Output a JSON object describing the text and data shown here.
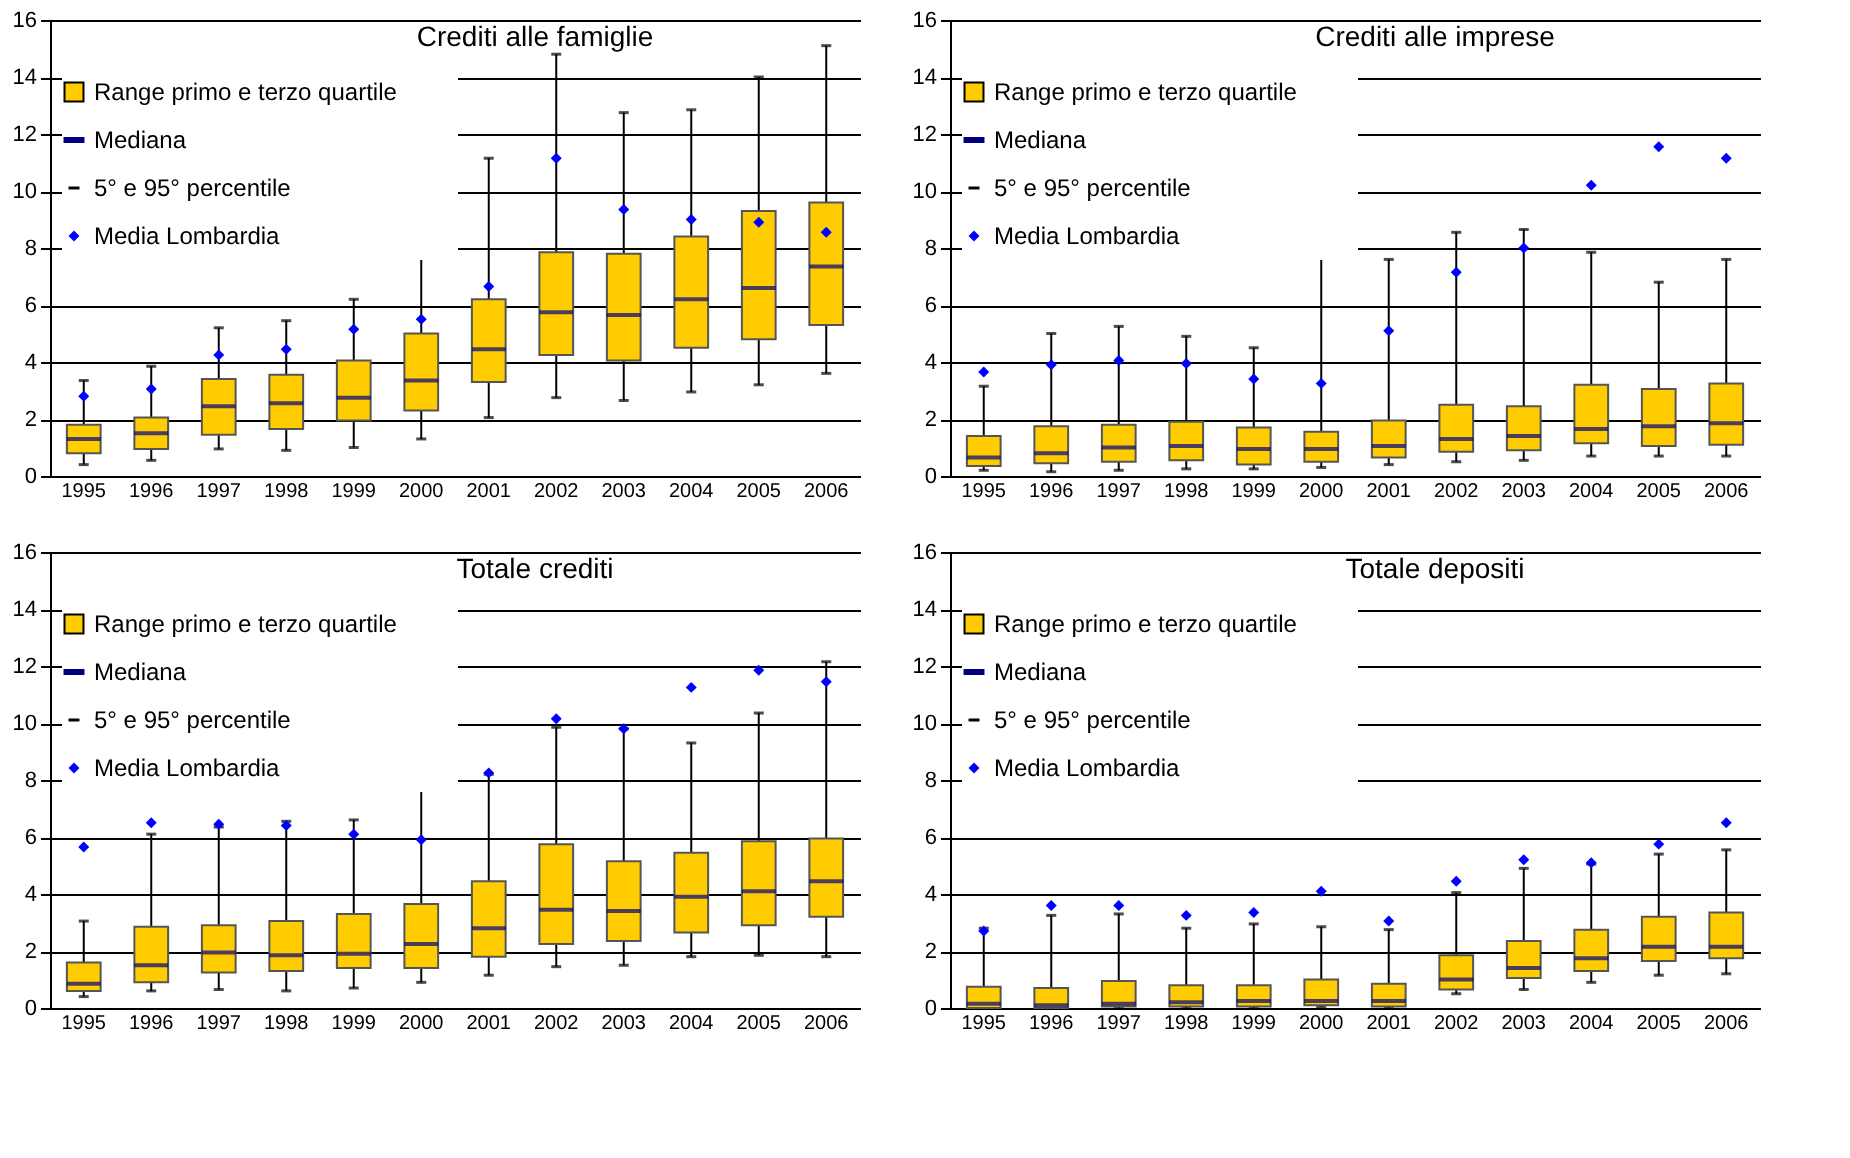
{
  "chart_data": [
    {
      "type": "box",
      "title": "Crediti alle famiglie",
      "categories": [
        "1995",
        "1996",
        "1997",
        "1998",
        "1999",
        "2000",
        "2001",
        "2002",
        "2003",
        "2004",
        "2005",
        "2006"
      ],
      "ylim": [
        0,
        16
      ],
      "yticks": [
        0,
        2,
        4,
        6,
        8,
        10,
        12,
        14,
        16
      ],
      "grid": "y",
      "legend": "top left",
      "marker": "diamond",
      "annotations": [
        "Mediana",
        "5° e 95° percentile"
      ],
      "series": [
        {
          "name": "Range primo e terzo quartile",
          "type": "box",
          "color": "#ffcc00",
          "boxes": [
            {
              "low": 0.4,
              "q1": 0.8,
              "median": 1.3,
              "q3": 1.8,
              "high": 3.35
            },
            {
              "low": 0.55,
              "q1": 0.95,
              "median": 1.5,
              "q3": 2.05,
              "high": 3.85
            },
            {
              "low": 0.95,
              "q1": 1.45,
              "median": 2.45,
              "q3": 3.4,
              "high": 5.2
            },
            {
              "low": 0.9,
              "q1": 1.65,
              "median": 2.55,
              "q3": 3.55,
              "high": 5.45
            },
            {
              "low": 1.0,
              "q1": 1.95,
              "median": 2.75,
              "q3": 4.05,
              "high": 6.2
            },
            {
              "low": 1.3,
              "q1": 2.3,
              "median": 3.35,
              "q3": 5.0,
              "high": 8.4
            },
            {
              "low": 2.05,
              "q1": 3.3,
              "median": 4.45,
              "q3": 6.2,
              "high": 11.15
            },
            {
              "low": 2.75,
              "q1": 4.25,
              "median": 5.75,
              "q3": 7.85,
              "high": 14.8
            },
            {
              "low": 2.65,
              "q1": 4.05,
              "median": 5.65,
              "q3": 7.8,
              "high": 12.75
            },
            {
              "low": 2.95,
              "q1": 4.5,
              "median": 6.2,
              "q3": 8.4,
              "high": 12.85
            },
            {
              "low": 3.2,
              "q1": 4.8,
              "median": 6.6,
              "q3": 9.3,
              "high": 14.0
            },
            {
              "low": 3.6,
              "q1": 5.3,
              "median": 7.35,
              "q3": 9.6,
              "high": 15.1
            }
          ]
        },
        {
          "name": "Media Lombardia",
          "type": "scatter",
          "color": "#0000ff",
          "values": [
            2.8,
            3.05,
            4.25,
            4.45,
            5.15,
            5.5,
            6.65,
            11.15,
            9.35,
            9.0,
            8.9,
            8.55
          ]
        }
      ]
    },
    {
      "type": "box",
      "title": "Crediti alle imprese",
      "categories": [
        "1995",
        "1996",
        "1997",
        "1998",
        "1999",
        "2000",
        "2001",
        "2002",
        "2003",
        "2004",
        "2005",
        "2006"
      ],
      "ylim": [
        0,
        16
      ],
      "yticks": [
        0,
        2,
        4,
        6,
        8,
        10,
        12,
        14,
        16
      ],
      "grid": "y",
      "legend": "top left",
      "marker": "diamond",
      "annotations": [
        "Mediana",
        "5° e 95° percentile"
      ],
      "series": [
        {
          "name": "Range primo e terzo quartile",
          "type": "box",
          "color": "#ffcc00",
          "boxes": [
            {
              "low": 0.2,
              "q1": 0.35,
              "median": 0.65,
              "q3": 1.4,
              "high": 3.15
            },
            {
              "low": 0.15,
              "q1": 0.45,
              "median": 0.8,
              "q3": 1.75,
              "high": 5.0
            },
            {
              "low": 0.2,
              "q1": 0.5,
              "median": 1.0,
              "q3": 1.8,
              "high": 5.25
            },
            {
              "low": 0.25,
              "q1": 0.55,
              "median": 1.05,
              "q3": 1.9,
              "high": 4.9
            },
            {
              "low": 0.25,
              "q1": 0.4,
              "median": 0.95,
              "q3": 1.7,
              "high": 4.5
            },
            {
              "low": 0.3,
              "q1": 0.5,
              "median": 0.95,
              "q3": 1.55,
              "high": 8.4
            },
            {
              "low": 0.4,
              "q1": 0.65,
              "median": 1.05,
              "q3": 1.95,
              "high": 7.6
            },
            {
              "low": 0.5,
              "q1": 0.85,
              "median": 1.3,
              "q3": 2.5,
              "high": 8.55
            },
            {
              "low": 0.55,
              "q1": 0.9,
              "median": 1.4,
              "q3": 2.45,
              "high": 8.65
            },
            {
              "low": 0.7,
              "q1": 1.15,
              "median": 1.65,
              "q3": 3.2,
              "high": 7.85
            },
            {
              "low": 0.7,
              "q1": 1.05,
              "median": 1.75,
              "q3": 3.05,
              "high": 6.8
            },
            {
              "low": 0.7,
              "q1": 1.1,
              "median": 1.85,
              "q3": 3.25,
              "high": 7.6
            }
          ]
        },
        {
          "name": "Media Lombardia",
          "type": "scatter",
          "color": "#0000ff",
          "values": [
            3.65,
            3.9,
            4.05,
            3.95,
            3.4,
            3.25,
            5.1,
            7.15,
            8.0,
            10.2,
            11.55,
            11.15
          ]
        }
      ]
    },
    {
      "type": "box",
      "title": "Totale crediti",
      "categories": [
        "1995",
        "1996",
        "1997",
        "1998",
        "1999",
        "2000",
        "2001",
        "2002",
        "2003",
        "2004",
        "2005",
        "2006"
      ],
      "ylim": [
        0,
        16
      ],
      "yticks": [
        0,
        2,
        4,
        6,
        8,
        10,
        12,
        14,
        16
      ],
      "grid": "y",
      "legend": "top left",
      "marker": "diamond",
      "annotations": [
        "Mediana",
        "5° e 95° percentile"
      ],
      "series": [
        {
          "name": "Range primo e terzo quartile",
          "type": "box",
          "color": "#ffcc00",
          "boxes": [
            {
              "low": 0.4,
              "q1": 0.6,
              "median": 0.85,
              "q3": 1.6,
              "high": 3.05
            },
            {
              "low": 0.6,
              "q1": 0.9,
              "median": 1.5,
              "q3": 2.85,
              "high": 6.1
            },
            {
              "low": 0.65,
              "q1": 1.25,
              "median": 1.95,
              "q3": 2.9,
              "high": 6.35
            },
            {
              "low": 0.6,
              "q1": 1.3,
              "median": 1.85,
              "q3": 3.05,
              "high": 6.55
            },
            {
              "low": 0.7,
              "q1": 1.4,
              "median": 1.9,
              "q3": 3.3,
              "high": 6.6
            },
            {
              "low": 0.9,
              "q1": 1.4,
              "median": 2.25,
              "q3": 3.65,
              "high": 8.05
            },
            {
              "low": 1.15,
              "q1": 1.8,
              "median": 2.8,
              "q3": 4.45,
              "high": 8.2
            },
            {
              "low": 1.45,
              "q1": 2.25,
              "median": 3.45,
              "q3": 5.75,
              "high": 9.85
            },
            {
              "low": 1.5,
              "q1": 2.35,
              "median": 3.4,
              "q3": 5.15,
              "high": 9.8
            },
            {
              "low": 1.8,
              "q1": 2.65,
              "median": 3.9,
              "q3": 5.45,
              "high": 9.3
            },
            {
              "low": 1.85,
              "q1": 2.9,
              "median": 4.1,
              "q3": 5.85,
              "high": 10.35
            },
            {
              "low": 1.8,
              "q1": 3.2,
              "median": 4.45,
              "q3": 5.95,
              "high": 12.15
            }
          ]
        },
        {
          "name": "Media Lombardia",
          "type": "scatter",
          "color": "#0000ff",
          "values": [
            5.65,
            6.5,
            6.45,
            6.4,
            6.1,
            5.9,
            8.25,
            10.15,
            9.8,
            11.25,
            11.85,
            11.45
          ]
        }
      ]
    },
    {
      "type": "box",
      "title": "Totale depositi",
      "categories": [
        "1995",
        "1996",
        "1997",
        "1998",
        "1999",
        "2000",
        "2001",
        "2002",
        "2003",
        "2004",
        "2005",
        "2006"
      ],
      "ylim": [
        0,
        16
      ],
      "yticks": [
        0,
        2,
        4,
        6,
        8,
        10,
        12,
        14,
        16
      ],
      "grid": "y",
      "legend": "top left",
      "marker": "diamond",
      "annotations": [
        "Mediana",
        "5° e 95° percentile"
      ],
      "series": [
        {
          "name": "Range primo e terzo quartile",
          "type": "box",
          "color": "#ffcc00",
          "boxes": [
            {
              "low": 0.0,
              "q1": 0.0,
              "median": 0.15,
              "q3": 0.75,
              "high": 2.8
            },
            {
              "low": 0.0,
              "q1": 0.0,
              "median": 0.1,
              "q3": 0.7,
              "high": 3.25
            },
            {
              "low": 0.0,
              "q1": 0.05,
              "median": 0.15,
              "q3": 0.95,
              "high": 3.3
            },
            {
              "low": 0.0,
              "q1": 0.05,
              "median": 0.2,
              "q3": 0.8,
              "high": 2.8
            },
            {
              "low": 0.0,
              "q1": 0.05,
              "median": 0.25,
              "q3": 0.8,
              "high": 2.95
            },
            {
              "low": 0.05,
              "q1": 0.1,
              "median": 0.25,
              "q3": 1.0,
              "high": 2.85
            },
            {
              "low": 0.0,
              "q1": 0.05,
              "median": 0.25,
              "q3": 0.85,
              "high": 2.75
            },
            {
              "low": 0.5,
              "q1": 0.65,
              "median": 1.0,
              "q3": 1.85,
              "high": 4.05
            },
            {
              "low": 0.65,
              "q1": 1.05,
              "median": 1.4,
              "q3": 2.35,
              "high": 4.9
            },
            {
              "low": 0.9,
              "q1": 1.3,
              "median": 1.75,
              "q3": 2.75,
              "high": 5.05
            },
            {
              "low": 1.15,
              "q1": 1.65,
              "median": 2.15,
              "q3": 3.2,
              "high": 5.4
            },
            {
              "low": 1.2,
              "q1": 1.75,
              "median": 2.15,
              "q3": 3.35,
              "high": 5.55
            }
          ]
        },
        {
          "name": "Media Lombardia",
          "type": "scatter",
          "color": "#0000ff",
          "values": [
            2.7,
            3.6,
            3.6,
            3.25,
            3.35,
            4.1,
            3.05,
            4.45,
            5.2,
            5.1,
            5.75,
            6.5
          ]
        }
      ]
    }
  ]
}
